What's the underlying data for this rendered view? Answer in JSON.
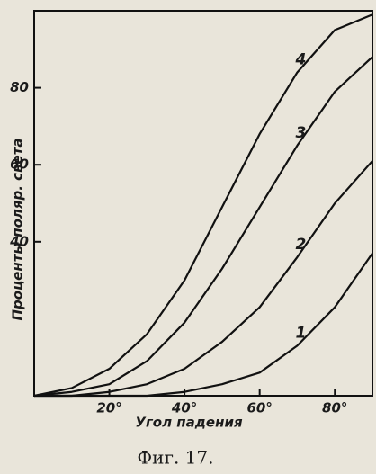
{
  "chart_data": {
    "type": "line",
    "caption": "Фиг. 17.",
    "x_label": "Угол падения",
    "y_label": "Проценты поляр. света",
    "x": [
      0,
      10,
      20,
      30,
      40,
      50,
      60,
      70,
      80,
      90
    ],
    "series": [
      {
        "name": "1",
        "color": "#111111",
        "values": [
          0,
          0,
          0,
          0,
          1,
          3,
          6,
          13,
          23,
          37
        ]
      },
      {
        "name": "2",
        "color": "#111111",
        "values": [
          0,
          0,
          1,
          3,
          7,
          14,
          23,
          36,
          50,
          61
        ]
      },
      {
        "name": "3",
        "color": "#111111",
        "values": [
          0,
          1,
          3,
          9,
          19,
          33,
          49,
          65,
          79,
          88
        ]
      },
      {
        "name": "4",
        "color": "#111111",
        "values": [
          0,
          2,
          7,
          16,
          30,
          49,
          68,
          84,
          95,
          99
        ]
      }
    ],
    "xlim": [
      0,
      90
    ],
    "ylim": [
      0,
      100
    ],
    "xticks": [
      {
        "value": 20,
        "label": "20°"
      },
      {
        "value": 40,
        "label": "40°"
      },
      {
        "value": 60,
        "label": "60°"
      },
      {
        "value": 80,
        "label": "80°"
      }
    ],
    "yticks": [
      40,
      60,
      80
    ]
  }
}
